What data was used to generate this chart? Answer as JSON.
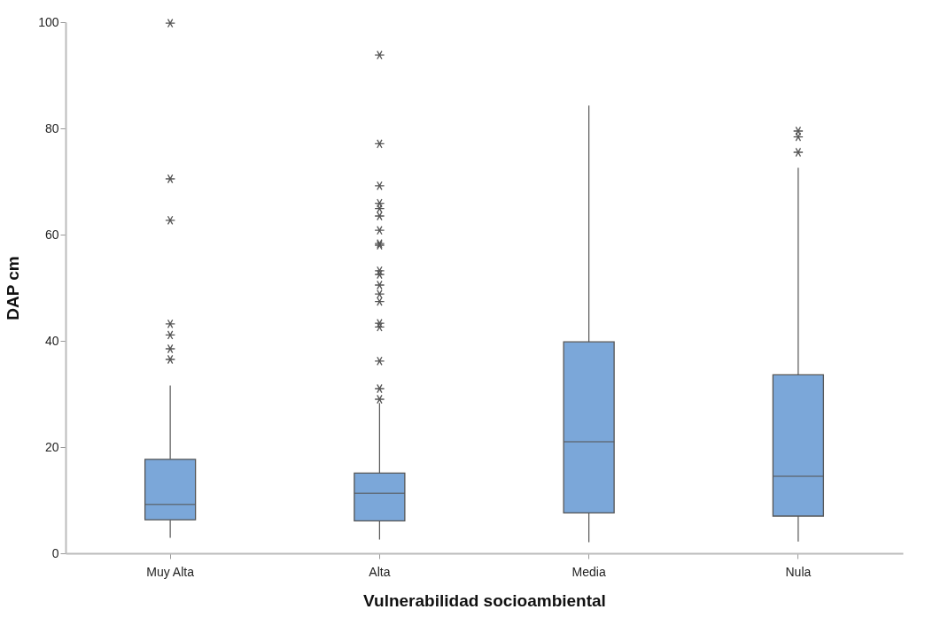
{
  "chart_data": {
    "type": "box",
    "xlabel": "Vulnerabilidad socioambiental",
    "ylabel": "DAP cm",
    "categories": [
      "Muy Alta",
      "Alta",
      "Media",
      "Nula"
    ],
    "boxes": [
      {
        "low": 2.9,
        "q1": 6.3,
        "median": 9.2,
        "q3": 17.7,
        "high": 31.6,
        "outliers": [
          99.8,
          70.5,
          62.7,
          43.2,
          41.1,
          38.5,
          36.5
        ]
      },
      {
        "low": 2.6,
        "q1": 6.1,
        "median": 11.3,
        "q3": 15.1,
        "high": 28.3,
        "outliers": [
          93.8,
          77.1,
          69.2,
          65.9,
          64.9,
          63.5,
          60.8,
          58.3,
          58.0,
          53.2,
          52.5,
          50.5,
          48.8,
          47.4,
          43.3,
          42.6,
          36.2,
          31.0,
          29.0
        ]
      },
      {
        "low": 2.1,
        "q1": 7.6,
        "median": 21.0,
        "q3": 39.8,
        "high": 84.3
      },
      {
        "low": 2.2,
        "q1": 7.0,
        "median": 14.5,
        "q3": 33.6,
        "high": 72.6,
        "outliers": [
          79.5,
          78.4,
          75.5
        ]
      }
    ],
    "color": "#7ba7d9",
    "marker": "star",
    "ylim": [
      0,
      100
    ],
    "yticks": [
      0,
      20,
      40,
      60,
      80,
      100
    ]
  }
}
